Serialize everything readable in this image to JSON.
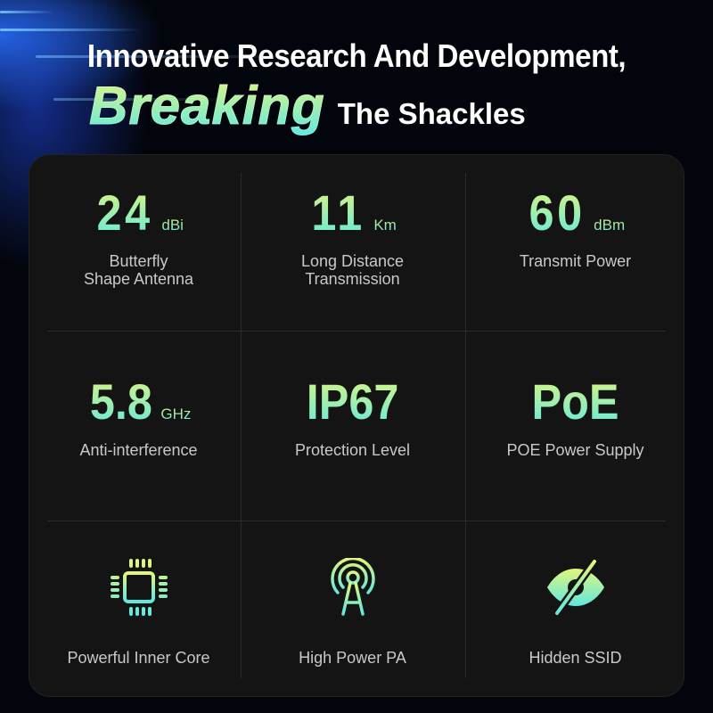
{
  "header": {
    "line1": "Innovative Research And Development,",
    "highlight": "Breaking",
    "line2_rest": "The Shackles"
  },
  "colors": {
    "gradient_top": "#e2f67c",
    "gradient_bottom": "#5ee8e0",
    "card_bg": "#141414"
  },
  "features": [
    {
      "value": "24",
      "unit": "dBi",
      "label": "Butterfly\nShape Antenna"
    },
    {
      "value": "11",
      "unit": "Km",
      "label": "Long Distance\nTransmission"
    },
    {
      "value": "60",
      "unit": "dBm",
      "label": "Transmit Power"
    },
    {
      "value": "5.8",
      "unit": "GHz",
      "label": "Anti-interference"
    },
    {
      "value": "IP67",
      "unit": "",
      "label": "Protection Level"
    },
    {
      "value": "PoE",
      "unit": "",
      "label": "POE Power Supply"
    },
    {
      "icon": "chip-icon",
      "label": "Powerful Inner Core"
    },
    {
      "icon": "antenna-tower-icon",
      "label": "High Power PA"
    },
    {
      "icon": "eye-slash-icon",
      "label": "Hidden SSID"
    }
  ]
}
